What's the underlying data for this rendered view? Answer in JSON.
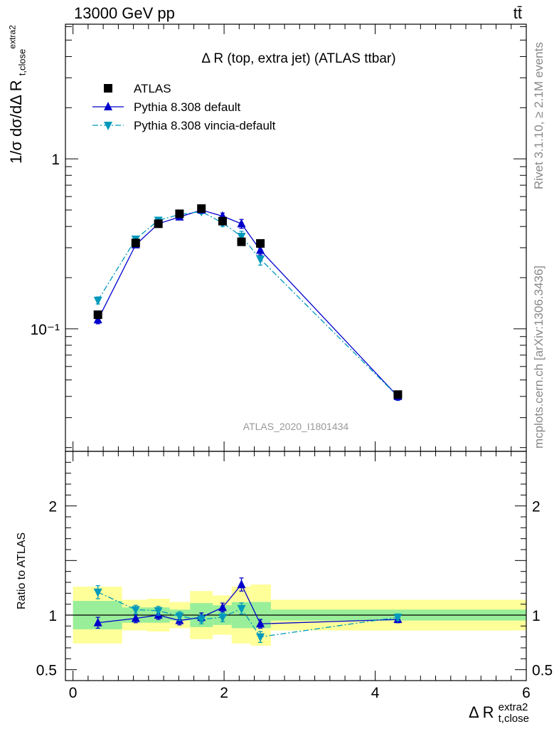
{
  "header": {
    "energy_label": "13000 GeV pp",
    "process_label": "tt̄"
  },
  "side_notes": {
    "rivet": "Rivet 3.1.10, ≥ 2.1M events",
    "mcplots": "mcplots.cern.ch [arXiv:1306.3436]"
  },
  "chart_data": [
    {
      "type": "line",
      "title": "Δ R (top, extra jet) (ATLAS ttbar)",
      "ylabel": "1/σ dσ/dΔ R",
      "analysis_label": "ATLAS_2020_I1801434",
      "yscale": "log",
      "xlim": [
        -0.1,
        6.0
      ],
      "ylim": [
        0.019,
        6.2
      ],
      "ytick_labels": [
        "10⁻¹",
        "1"
      ],
      "legend": [
        "ATLAS",
        "Pythia 8.308 default",
        "Pythia 8.308 vincia-default"
      ],
      "legend_position": "top-left",
      "x": [
        0.33,
        0.83,
        1.13,
        1.41,
        1.7,
        1.98,
        2.23,
        2.48,
        4.3
      ],
      "series": [
        {
          "name": "ATLAS",
          "marker": "square",
          "color": "#000000",
          "values": [
            0.121,
            0.32,
            0.415,
            0.475,
            0.51,
            0.43,
            0.325,
            0.318,
            0.041
          ]
        },
        {
          "name": "Pythia 8.308 default",
          "marker": "triangle-up",
          "color": "#0000cc",
          "values": [
            0.113,
            0.312,
            0.415,
            0.455,
            0.5,
            0.46,
            0.415,
            0.29,
            0.04
          ],
          "errors": [
            0.006,
            0.01,
            0.012,
            0.013,
            0.014,
            0.02,
            0.025,
            0.018,
            0.002
          ]
        },
        {
          "name": "Pythia 8.308 vincia-default",
          "marker": "triangle-down",
          "color": "#0099bb",
          "values": [
            0.147,
            0.337,
            0.435,
            0.47,
            0.49,
            0.42,
            0.35,
            0.257,
            0.04
          ],
          "errors": [
            0.007,
            0.012,
            0.013,
            0.014,
            0.015,
            0.02,
            0.025,
            0.02,
            0.002
          ]
        }
      ]
    },
    {
      "type": "line",
      "ylabel": "Ratio to ATLAS",
      "xlabel": "Δ R",
      "xlabel_sup": "extra2",
      "xlabel_sub": "t,close",
      "xlim": [
        -0.1,
        6.0
      ],
      "ylim": [
        0.4,
        2.5
      ],
      "xticks": [
        0,
        2,
        4,
        6
      ],
      "xtick_labels": [
        "0",
        "2",
        "4",
        "6"
      ],
      "yticks": [
        0.5,
        1,
        2
      ],
      "ytick_labels": [
        "0.5",
        "1",
        "2"
      ],
      "bands": [
        {
          "xlo": 0.0,
          "xhi": 0.65,
          "inner": 0.13,
          "outer": 0.26
        },
        {
          "xlo": 0.65,
          "xhi": 0.98,
          "inner": 0.07,
          "outer": 0.14
        },
        {
          "xlo": 0.98,
          "xhi": 1.28,
          "inner": 0.07,
          "outer": 0.15
        },
        {
          "xlo": 1.28,
          "xhi": 1.55,
          "inner": 0.05,
          "outer": 0.12
        },
        {
          "xlo": 1.55,
          "xhi": 1.85,
          "inner": 0.11,
          "outer": 0.22
        },
        {
          "xlo": 1.85,
          "xhi": 2.1,
          "inner": 0.09,
          "outer": 0.18
        },
        {
          "xlo": 2.1,
          "xhi": 2.35,
          "inner": 0.12,
          "outer": 0.26
        },
        {
          "xlo": 2.35,
          "xhi": 2.62,
          "inner": 0.12,
          "outer": 0.28
        },
        {
          "xlo": 2.62,
          "xhi": 6.0,
          "inner": 0.05,
          "outer": 0.14
        }
      ],
      "x": [
        0.33,
        0.83,
        1.13,
        1.41,
        1.7,
        1.98,
        2.23,
        2.48,
        4.3
      ],
      "series": [
        {
          "name": "Pythia 8.308 default",
          "marker": "triangle-up",
          "color": "#0000cc",
          "values": [
            0.93,
            0.97,
            1.0,
            0.95,
            0.98,
            1.07,
            1.28,
            0.92,
            0.96
          ],
          "errors": [
            0.05,
            0.04,
            0.04,
            0.04,
            0.04,
            0.04,
            0.06,
            0.04,
            0.03
          ]
        },
        {
          "name": "Pythia 8.308 vincia-default",
          "marker": "triangle-down",
          "color": "#0099bb",
          "values": [
            1.21,
            1.05,
            1.04,
            0.99,
            0.96,
            0.98,
            1.06,
            0.8,
            0.98
          ],
          "errors": [
            0.06,
            0.04,
            0.04,
            0.04,
            0.04,
            0.04,
            0.05,
            0.05,
            0.03
          ]
        }
      ]
    }
  ]
}
